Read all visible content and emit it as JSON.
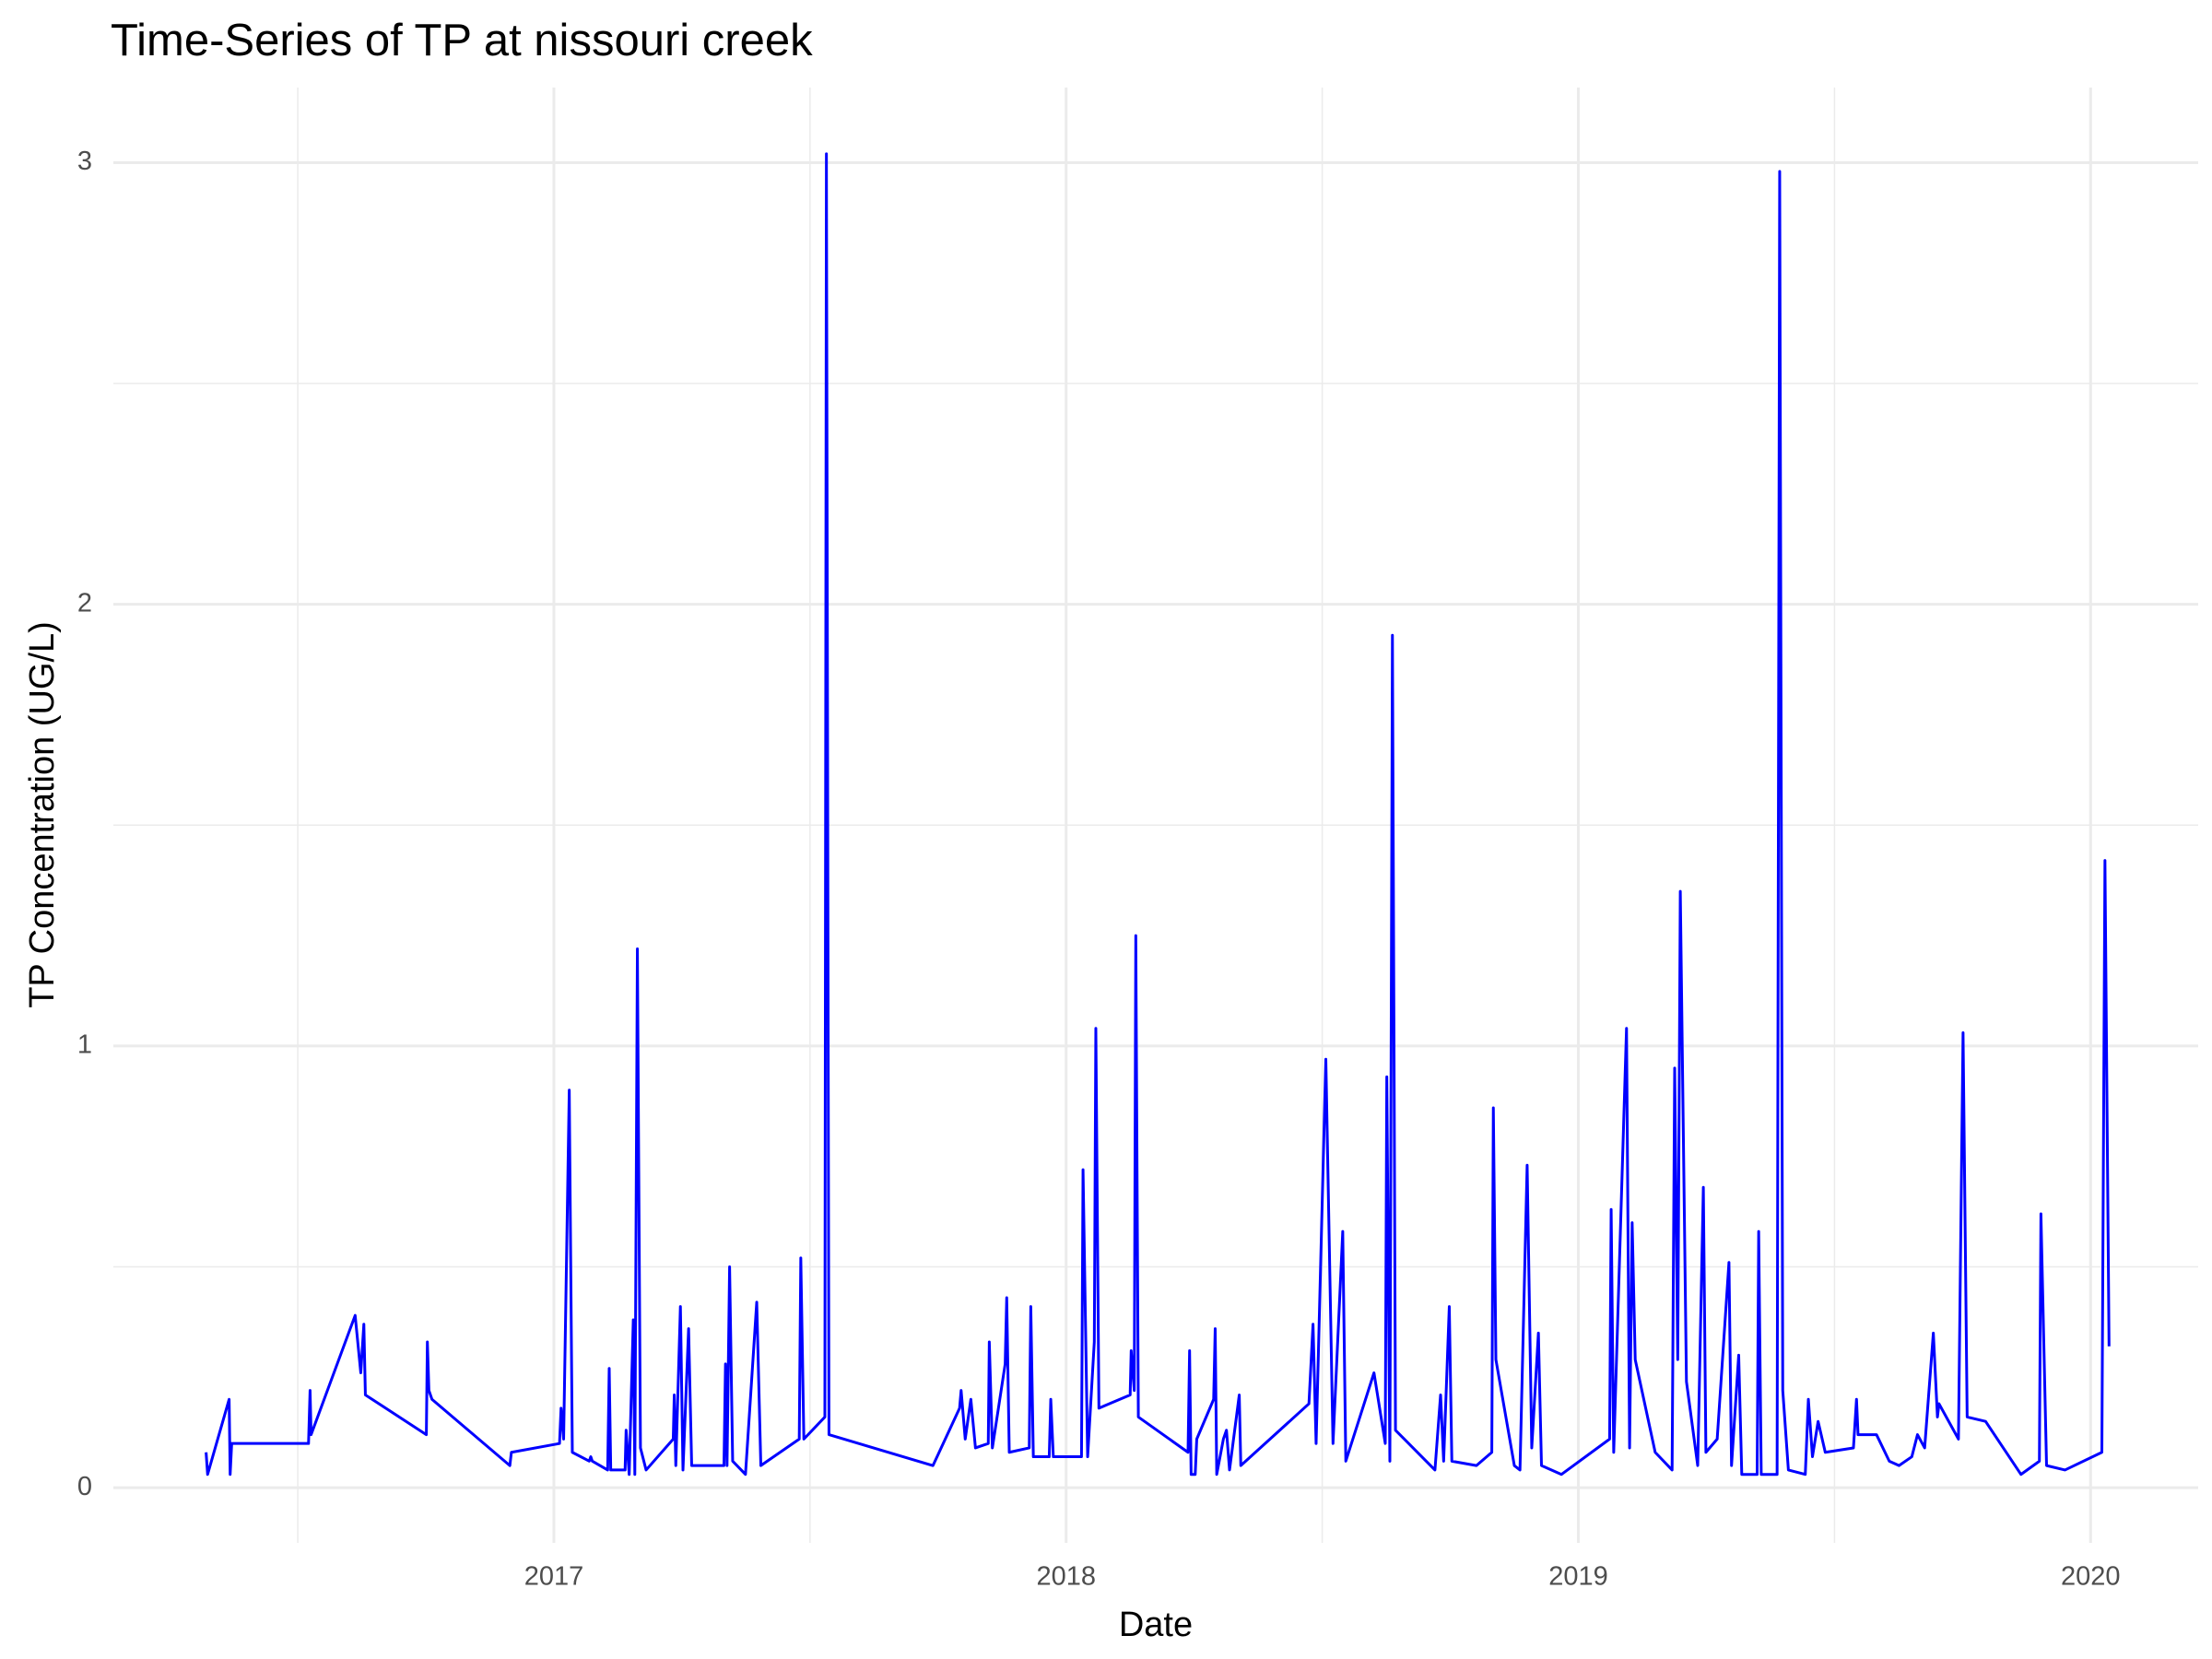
{
  "chart_data": {
    "type": "line",
    "title": "Time-Series of TP at nissouri creek",
    "x_label": "Date",
    "y_label": "TP Concentration (UG/L)",
    "color": "#0000ff",
    "grid": true,
    "xlim": [
      2016.14,
      2020.21
    ],
    "ylim": [
      -0.125,
      3.17
    ],
    "xticks": [
      2017,
      2018,
      2019,
      2020
    ],
    "yticks": [
      0,
      1,
      2,
      3
    ],
    "x": [
      2016.321,
      2016.324,
      2016.366,
      2016.368,
      2016.371,
      2016.521,
      2016.524,
      2016.526,
      2016.612,
      2016.623,
      2016.629,
      2016.632,
      2016.751,
      2016.753,
      2016.756,
      2016.762,
      2016.914,
      2016.917,
      2017.011,
      2017.014,
      2017.019,
      2017.03,
      2017.036,
      2017.069,
      2017.072,
      2017.075,
      2017.105,
      2017.108,
      2017.111,
      2017.139,
      2017.141,
      2017.147,
      2017.155,
      2017.158,
      2017.163,
      2017.169,
      2017.18,
      2017.233,
      2017.235,
      2017.238,
      2017.247,
      2017.252,
      2017.263,
      2017.269,
      2017.332,
      2017.335,
      2017.338,
      2017.343,
      2017.349,
      2017.374,
      2017.396,
      2017.404,
      2017.479,
      2017.482,
      2017.488,
      2017.529,
      2017.532,
      2017.537,
      2017.74,
      2017.792,
      2017.795,
      2017.803,
      2017.814,
      2017.823,
      2017.848,
      2017.85,
      2017.856,
      2017.881,
      2017.884,
      2017.889,
      2017.928,
      2017.931,
      2017.936,
      2017.967,
      2017.97,
      2017.975,
      2018.03,
      2018.033,
      2018.042,
      2018.055,
      2018.058,
      2018.064,
      2018.125,
      2018.127,
      2018.133,
      2018.136,
      2018.141,
      2018.238,
      2018.241,
      2018.244,
      2018.252,
      2018.255,
      2018.288,
      2018.291,
      2018.294,
      2018.307,
      2018.313,
      2018.319,
      2018.338,
      2018.341,
      2018.474,
      2018.482,
      2018.488,
      2018.507,
      2018.521,
      2018.54,
      2018.546,
      2018.601,
      2018.623,
      2018.626,
      2018.632,
      2018.637,
      2018.643,
      2018.72,
      2018.731,
      2018.737,
      2018.748,
      2018.753,
      2018.801,
      2018.831,
      2018.834,
      2018.839,
      2018.875,
      2018.886,
      2018.9,
      2018.909,
      2018.922,
      2018.928,
      2018.967,
      2019.061,
      2019.064,
      2019.069,
      2019.094,
      2019.1,
      2019.105,
      2019.111,
      2019.15,
      2019.183,
      2019.188,
      2019.194,
      2019.199,
      2019.211,
      2019.233,
      2019.244,
      2019.249,
      2019.271,
      2019.294,
      2019.299,
      2019.313,
      2019.319,
      2019.349,
      2019.352,
      2019.357,
      2019.388,
      2019.393,
      2019.399,
      2019.41,
      2019.443,
      2019.449,
      2019.457,
      2019.468,
      2019.482,
      2019.537,
      2019.543,
      2019.546,
      2019.582,
      2019.607,
      2019.626,
      2019.651,
      2019.662,
      2019.676,
      2019.693,
      2019.701,
      2019.704,
      2019.742,
      2019.751,
      2019.759,
      2019.795,
      2019.864,
      2019.9,
      2019.903,
      2019.914,
      2019.95,
      2020.022,
      2020.028,
      2020.036
    ],
    "values": [
      0.08,
      0.03,
      0.2,
      0.03,
      0.1,
      0.1,
      0.22,
      0.12,
      0.39,
      0.26,
      0.37,
      0.21,
      0.12,
      0.33,
      0.22,
      0.2,
      0.05,
      0.08,
      0.1,
      0.18,
      0.11,
      0.9,
      0.08,
      0.06,
      0.07,
      0.06,
      0.04,
      0.27,
      0.04,
      0.04,
      0.13,
      0.03,
      0.38,
      0.03,
      1.22,
      0.09,
      0.04,
      0.11,
      0.21,
      0.05,
      0.41,
      0.04,
      0.36,
      0.05,
      0.05,
      0.28,
      0.05,
      0.5,
      0.06,
      0.03,
      0.42,
      0.05,
      0.11,
      0.52,
      0.11,
      0.16,
      3.02,
      0.12,
      0.05,
      0.18,
      0.22,
      0.11,
      0.2,
      0.09,
      0.1,
      0.33,
      0.09,
      0.28,
      0.43,
      0.08,
      0.09,
      0.41,
      0.07,
      0.07,
      0.2,
      0.07,
      0.07,
      0.72,
      0.07,
      0.33,
      1.04,
      0.18,
      0.21,
      0.31,
      0.22,
      1.25,
      0.16,
      0.08,
      0.31,
      0.03,
      0.03,
      0.11,
      0.2,
      0.36,
      0.03,
      0.11,
      0.13,
      0.04,
      0.21,
      0.05,
      0.19,
      0.37,
      0.1,
      0.97,
      0.1,
      0.58,
      0.06,
      0.26,
      0.1,
      0.93,
      0.06,
      1.93,
      0.13,
      0.04,
      0.21,
      0.06,
      0.41,
      0.06,
      0.05,
      0.08,
      0.86,
      0.29,
      0.05,
      0.04,
      0.73,
      0.09,
      0.35,
      0.05,
      0.03,
      0.11,
      0.63,
      0.08,
      1.04,
      0.09,
      0.6,
      0.29,
      0.08,
      0.04,
      0.95,
      0.29,
      1.35,
      0.24,
      0.05,
      0.68,
      0.08,
      0.11,
      0.51,
      0.05,
      0.3,
      0.03,
      0.03,
      0.58,
      0.03,
      0.03,
      2.98,
      0.22,
      0.04,
      0.03,
      0.2,
      0.07,
      0.15,
      0.08,
      0.09,
      0.2,
      0.12,
      0.12,
      0.06,
      0.05,
      0.07,
      0.12,
      0.09,
      0.35,
      0.16,
      0.19,
      0.11,
      1.03,
      0.16,
      0.15,
      0.03,
      0.06,
      0.62,
      0.05,
      0.04,
      0.08,
      1.42,
      0.32
    ]
  }
}
